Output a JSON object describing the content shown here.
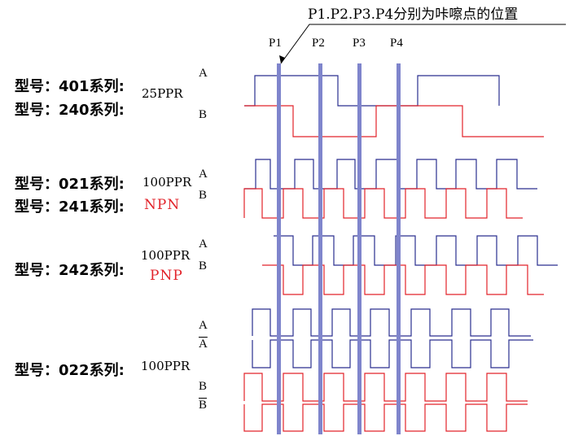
{
  "annotation": "P1.P2.P3.P4分别为咔嚓点的位置",
  "positions": [
    "P1",
    "P2",
    "P3",
    "P4"
  ],
  "groups": [
    {
      "model_lines": [
        "型号：401系列",
        "型号：240系列"
      ],
      "ppr": "25PPR",
      "channels": [
        "A",
        "B"
      ]
    },
    {
      "model_lines": [
        "型号：021系列",
        "型号：241系列"
      ],
      "ppr": "100PPR",
      "type": "NPN",
      "channels": [
        "A",
        "B"
      ]
    },
    {
      "model_lines": [
        "型号：242系列"
      ],
      "ppr": "100PPR",
      "type": "PNP",
      "channels": [
        "A",
        "B"
      ]
    },
    {
      "model_lines": [
        "型号：022系列"
      ],
      "ppr": "100PPR",
      "channels": [
        "A",
        "A",
        "B",
        "B"
      ]
    }
  ],
  "colors": {
    "channel_a": "#2a2f8f",
    "channel_b": "#e2232a",
    "marker": "#7f85cc",
    "text": "#000000",
    "type_label": "#e2232a"
  }
}
